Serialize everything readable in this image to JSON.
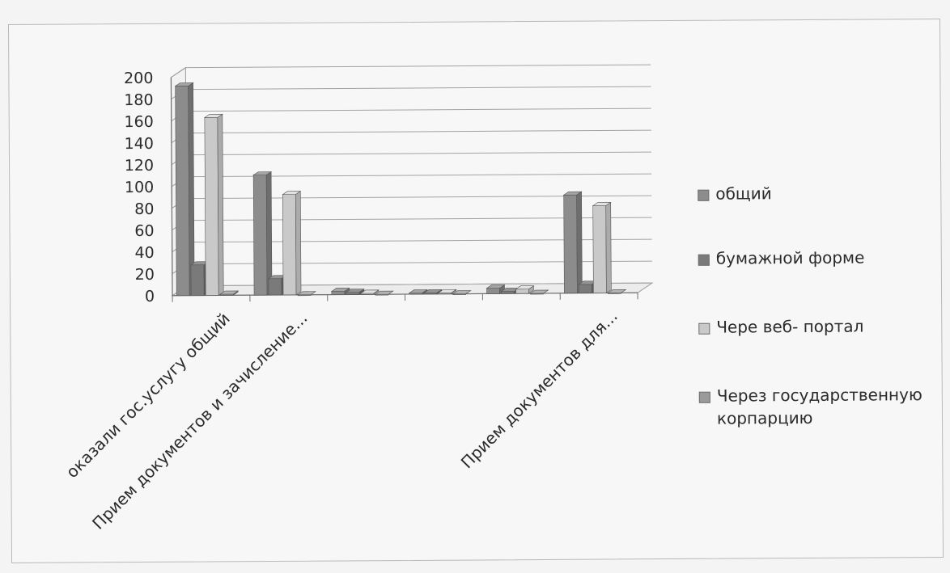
{
  "chart_data": {
    "type": "bar",
    "style": "3d-clustered-column",
    "categories": [
      "оказали гос.услугу общий",
      "Прием документов и зачисление...",
      "",
      "",
      "",
      "Прием документов  для..."
    ],
    "series": [
      {
        "name": "общий",
        "values": [
          192,
          110,
          3,
          1,
          5,
          90
        ]
      },
      {
        "name": "бумажной форме",
        "values": [
          28,
          15,
          2,
          1,
          2,
          8
        ]
      },
      {
        "name": "Чере веб- портал",
        "values": [
          163,
          92,
          1,
          1,
          4,
          80
        ]
      },
      {
        "name": "Через государственную корпарцию",
        "values": [
          1,
          0,
          0,
          0,
          0,
          0
        ]
      }
    ],
    "yticks": [
      0,
      20,
      40,
      60,
      80,
      100,
      120,
      140,
      160,
      180,
      200
    ],
    "ylim": [
      0,
      200
    ],
    "title": "",
    "xlabel": "",
    "ylabel": "",
    "grid": true,
    "legend_position": "right",
    "colors": [
      "#8c8c8c",
      "#7a7a7a",
      "#c9c9c9",
      "#9a9a9a"
    ]
  }
}
